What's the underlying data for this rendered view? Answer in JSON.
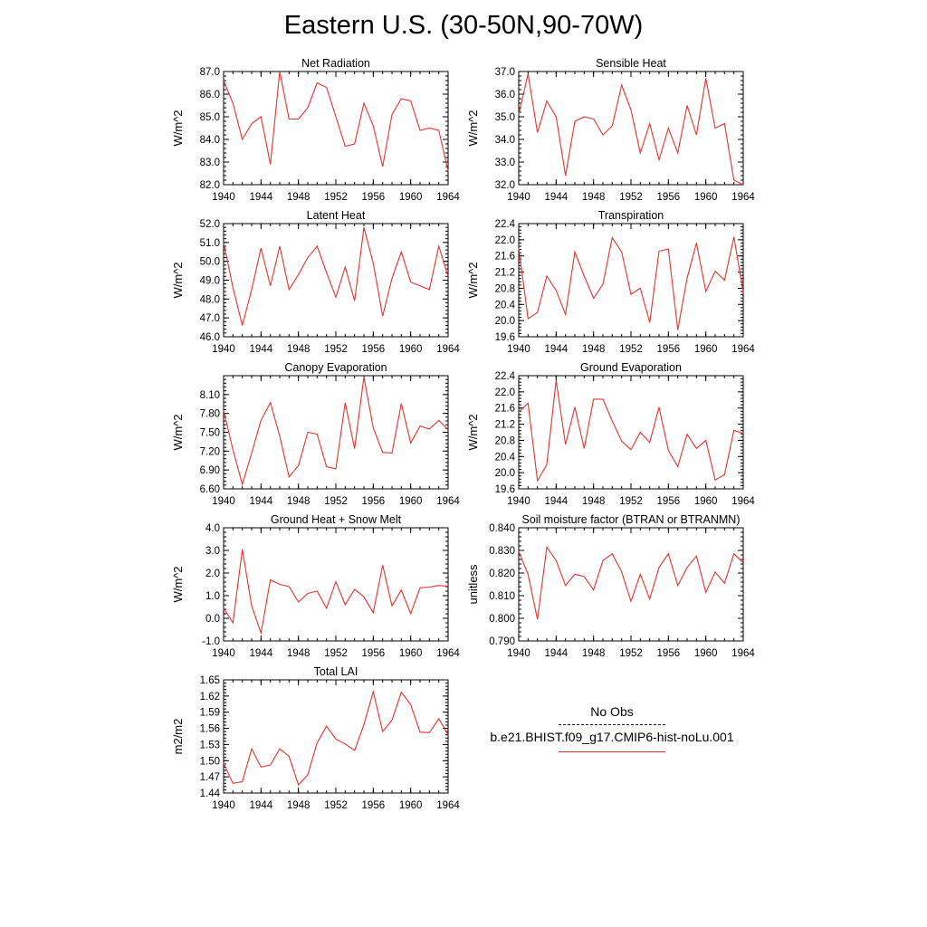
{
  "figure": {
    "title": "Eastern U.S. (30-50N,90-70W)",
    "series_color": "#e8322e",
    "legend": {
      "obs_label": "No Obs",
      "model_label": "b.e21.BHIST.f09_g17.CMIP6-hist-noLu.001"
    }
  },
  "chart_data": [
    {
      "type": "line",
      "title": "Net Radiation",
      "ylabel": "W/m^2",
      "ylim": [
        82.0,
        87.0
      ],
      "yticks": [
        "82.0",
        "83.0",
        "84.0",
        "85.0",
        "86.0",
        "87.0"
      ],
      "xlim": [
        1940,
        1964
      ],
      "xticks": [
        "1940",
        "1944",
        "1948",
        "1952",
        "1956",
        "1960",
        "1964"
      ],
      "series": [
        {
          "x": [
            1940,
            1941,
            1942,
            1943,
            1944,
            1945,
            1946,
            1947,
            1948,
            1949,
            1950,
            1951,
            1952,
            1953,
            1954,
            1955,
            1956,
            1957,
            1958,
            1959,
            1960,
            1961,
            1962,
            1963,
            1964
          ],
          "values": [
            86.6,
            85.6,
            84.0,
            84.7,
            85.0,
            82.9,
            87.0,
            84.9,
            84.9,
            85.4,
            86.5,
            86.3,
            85.0,
            83.7,
            83.8,
            85.6,
            84.6,
            82.8,
            85.1,
            85.8,
            85.7,
            84.4,
            84.5,
            84.4,
            82.6
          ]
        }
      ]
    },
    {
      "type": "line",
      "title": "Sensible Heat",
      "ylabel": "W/m^2",
      "ylim": [
        32.0,
        37.0
      ],
      "yticks": [
        "32.0",
        "33.0",
        "34.0",
        "35.0",
        "36.0",
        "37.0"
      ],
      "xlim": [
        1940,
        1964
      ],
      "xticks": [
        "1940",
        "1944",
        "1948",
        "1952",
        "1956",
        "1960",
        "1964"
      ],
      "series": [
        {
          "x": [
            1940,
            1941,
            1942,
            1943,
            1944,
            1945,
            1946,
            1947,
            1948,
            1949,
            1950,
            1951,
            1952,
            1953,
            1954,
            1955,
            1956,
            1957,
            1958,
            1959,
            1960,
            1961,
            1962,
            1963,
            1964
          ],
          "values": [
            35.1,
            36.9,
            34.3,
            35.7,
            35.0,
            32.4,
            34.8,
            35.0,
            34.9,
            34.2,
            34.6,
            36.4,
            35.3,
            33.4,
            34.7,
            33.1,
            34.5,
            33.4,
            35.5,
            34.2,
            36.7,
            34.5,
            34.7,
            32.2,
            32.0
          ]
        }
      ]
    },
    {
      "type": "line",
      "title": "Latent Heat",
      "ylabel": "W/m^2",
      "ylim": [
        46.0,
        52.0
      ],
      "yticks": [
        "46.0",
        "47.0",
        "48.0",
        "49.0",
        "50.0",
        "51.0",
        "52.0"
      ],
      "xlim": [
        1940,
        1964
      ],
      "xticks": [
        "1940",
        "1944",
        "1948",
        "1952",
        "1956",
        "1960",
        "1964"
      ],
      "series": [
        {
          "x": [
            1940,
            1941,
            1942,
            1943,
            1944,
            1945,
            1946,
            1947,
            1948,
            1949,
            1950,
            1951,
            1952,
            1953,
            1954,
            1955,
            1956,
            1957,
            1958,
            1959,
            1960,
            1961,
            1962,
            1963,
            1964
          ],
          "values": [
            51.0,
            48.6,
            46.6,
            48.5,
            50.7,
            48.7,
            50.8,
            48.5,
            49.3,
            50.2,
            50.8,
            49.4,
            48.1,
            49.7,
            47.9,
            51.8,
            49.9,
            47.1,
            49.1,
            50.5,
            48.9,
            48.7,
            48.5,
            50.8,
            49.2
          ]
        }
      ]
    },
    {
      "type": "line",
      "title": "Transpiration",
      "ylabel": "W/m^2",
      "ylim": [
        19.6,
        22.4
      ],
      "yticks": [
        "19.6",
        "20.0",
        "20.4",
        "20.8",
        "21.2",
        "21.6",
        "22.0",
        "22.4"
      ],
      "xlim": [
        1940,
        1964
      ],
      "xticks": [
        "1940",
        "1944",
        "1948",
        "1952",
        "1956",
        "1960",
        "1964"
      ],
      "series": [
        {
          "x": [
            1940,
            1941,
            1942,
            1943,
            1944,
            1945,
            1946,
            1947,
            1948,
            1949,
            1950,
            1951,
            1952,
            1953,
            1954,
            1955,
            1956,
            1957,
            1958,
            1959,
            1960,
            1961,
            1962,
            1963,
            1964
          ],
          "values": [
            21.8,
            20.05,
            20.2,
            21.1,
            20.75,
            20.15,
            21.7,
            21.1,
            20.55,
            20.9,
            22.05,
            21.7,
            20.65,
            20.8,
            19.95,
            21.72,
            21.77,
            19.77,
            21.05,
            21.92,
            20.72,
            21.22,
            21.0,
            22.07,
            20.7
          ]
        }
      ]
    },
    {
      "type": "line",
      "title": "Canopy Evaporation",
      "ylabel": "W/m^2",
      "ylim": [
        6.6,
        8.4
      ],
      "yticks": [
        "6.60",
        "6.90",
        "7.20",
        "7.50",
        "7.80",
        "8.10"
      ],
      "xlim": [
        1940,
        1964
      ],
      "xticks": [
        "1940",
        "1944",
        "1948",
        "1952",
        "1956",
        "1960",
        "1964"
      ],
      "series": [
        {
          "x": [
            1940,
            1941,
            1942,
            1943,
            1944,
            1945,
            1946,
            1947,
            1948,
            1949,
            1950,
            1951,
            1952,
            1953,
            1954,
            1955,
            1956,
            1957,
            1958,
            1959,
            1960,
            1961,
            1962,
            1963,
            1964
          ],
          "values": [
            7.85,
            7.22,
            6.67,
            7.17,
            7.69,
            7.97,
            7.44,
            6.79,
            6.97,
            7.5,
            7.47,
            6.95,
            6.92,
            7.97,
            7.24,
            8.38,
            7.57,
            7.18,
            7.17,
            7.96,
            7.33,
            7.6,
            7.55,
            7.69,
            7.54
          ]
        }
      ]
    },
    {
      "type": "line",
      "title": "Ground Evaporation",
      "ylabel": "W/m^2",
      "ylim": [
        19.6,
        22.4
      ],
      "yticks": [
        "19.6",
        "20.0",
        "20.4",
        "20.8",
        "21.2",
        "21.6",
        "22.0",
        "22.4"
      ],
      "xlim": [
        1940,
        1964
      ],
      "xticks": [
        "1940",
        "1944",
        "1948",
        "1952",
        "1956",
        "1960",
        "1964"
      ],
      "series": [
        {
          "x": [
            1940,
            1941,
            1942,
            1943,
            1944,
            1945,
            1946,
            1947,
            1948,
            1949,
            1950,
            1951,
            1952,
            1953,
            1954,
            1955,
            1956,
            1957,
            1958,
            1959,
            1960,
            1961,
            1962,
            1963,
            1964
          ],
          "values": [
            21.5,
            21.72,
            19.8,
            20.2,
            22.28,
            20.7,
            21.62,
            20.6,
            21.82,
            21.82,
            21.28,
            20.78,
            20.57,
            21.0,
            20.75,
            21.62,
            20.55,
            20.15,
            20.95,
            20.6,
            20.8,
            19.82,
            19.95,
            21.05,
            20.97
          ]
        }
      ]
    },
    {
      "type": "line",
      "title": "Ground Heat + Snow Melt",
      "ylabel": "W/m^2",
      "ylim": [
        -1.0,
        4.0
      ],
      "yticks": [
        "-1.0",
        "0.0",
        "1.0",
        "2.0",
        "3.0",
        "4.0"
      ],
      "xlim": [
        1940,
        1964
      ],
      "xticks": [
        "1940",
        "1944",
        "1948",
        "1952",
        "1956",
        "1960",
        "1964"
      ],
      "series": [
        {
          "x": [
            1940,
            1941,
            1942,
            1943,
            1944,
            1945,
            1946,
            1947,
            1948,
            1949,
            1950,
            1951,
            1952,
            1953,
            1954,
            1955,
            1956,
            1957,
            1958,
            1959,
            1960,
            1961,
            1962,
            1963,
            1964
          ],
          "values": [
            0.45,
            -0.2,
            3.05,
            0.55,
            -0.65,
            1.7,
            1.5,
            1.4,
            0.72,
            1.1,
            1.2,
            0.45,
            1.62,
            0.6,
            1.28,
            0.95,
            0.25,
            2.35,
            0.55,
            1.25,
            0.2,
            1.35,
            1.38,
            1.45,
            1.42
          ]
        }
      ]
    },
    {
      "type": "line",
      "title": "Soil moisture factor (BTRAN or BTRANMN)",
      "ylabel": "unitless",
      "ylim": [
        0.79,
        0.84
      ],
      "yticks": [
        "0.790",
        "0.800",
        "0.810",
        "0.820",
        "0.830",
        "0.840"
      ],
      "xlim": [
        1940,
        1964
      ],
      "xticks": [
        "1940",
        "1944",
        "1948",
        "1952",
        "1956",
        "1960",
        "1964"
      ],
      "series": [
        {
          "x": [
            1940,
            1941,
            1942,
            1943,
            1944,
            1945,
            1946,
            1947,
            1948,
            1949,
            1950,
            1951,
            1952,
            1953,
            1954,
            1955,
            1956,
            1957,
            1958,
            1959,
            1960,
            1961,
            1962,
            1963,
            1964
          ],
          "values": [
            0.8295,
            0.8195,
            0.7995,
            0.8315,
            0.8255,
            0.8145,
            0.8195,
            0.8185,
            0.8125,
            0.8255,
            0.8285,
            0.8205,
            0.8075,
            0.8195,
            0.8085,
            0.8225,
            0.8285,
            0.8145,
            0.8225,
            0.8275,
            0.8115,
            0.8205,
            0.8155,
            0.8285,
            0.8245
          ]
        }
      ]
    },
    {
      "type": "line",
      "title": "Total LAI",
      "ylabel": "m2/m2",
      "ylim": [
        1.44,
        1.65
      ],
      "yticks": [
        "1.44",
        "1.47",
        "1.50",
        "1.53",
        "1.56",
        "1.59",
        "1.62",
        "1.65"
      ],
      "xlim": [
        1940,
        1964
      ],
      "xticks": [
        "1940",
        "1944",
        "1948",
        "1952",
        "1956",
        "1960",
        "1964"
      ],
      "series": [
        {
          "x": [
            1940,
            1941,
            1942,
            1943,
            1944,
            1945,
            1946,
            1947,
            1948,
            1949,
            1950,
            1951,
            1952,
            1953,
            1954,
            1955,
            1956,
            1957,
            1958,
            1959,
            1960,
            1961,
            1962,
            1963,
            1964
          ],
          "values": [
            1.495,
            1.458,
            1.461,
            1.522,
            1.488,
            1.492,
            1.522,
            1.508,
            1.455,
            1.474,
            1.533,
            1.564,
            1.54,
            1.531,
            1.519,
            1.567,
            1.628,
            1.554,
            1.575,
            1.627,
            1.604,
            1.553,
            1.552,
            1.578,
            1.548
          ]
        }
      ]
    }
  ]
}
